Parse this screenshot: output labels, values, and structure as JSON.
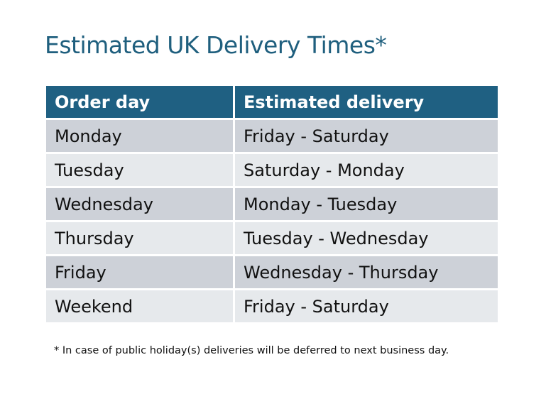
{
  "title": "Estimated UK Delivery Times*",
  "table": {
    "headers": [
      "Order day",
      "Estimated delivery"
    ],
    "rows": [
      [
        "Monday",
        "Friday - Saturday"
      ],
      [
        "Tuesday",
        "Saturday - Monday"
      ],
      [
        "Wednesday",
        "Monday - Tuesday"
      ],
      [
        "Thursday",
        "Tuesday - Wednesday"
      ],
      [
        "Friday",
        "Wednesday - Thursday"
      ],
      [
        "Weekend",
        "Friday - Saturday"
      ]
    ]
  },
  "footnote": "* In case of public holiday(s) deliveries will be deferred to next business day.",
  "colors": {
    "header": "#1f6082",
    "title": "#1f5f7e",
    "row_dark": "#cdd1d8",
    "row_light": "#e6e9ec"
  }
}
